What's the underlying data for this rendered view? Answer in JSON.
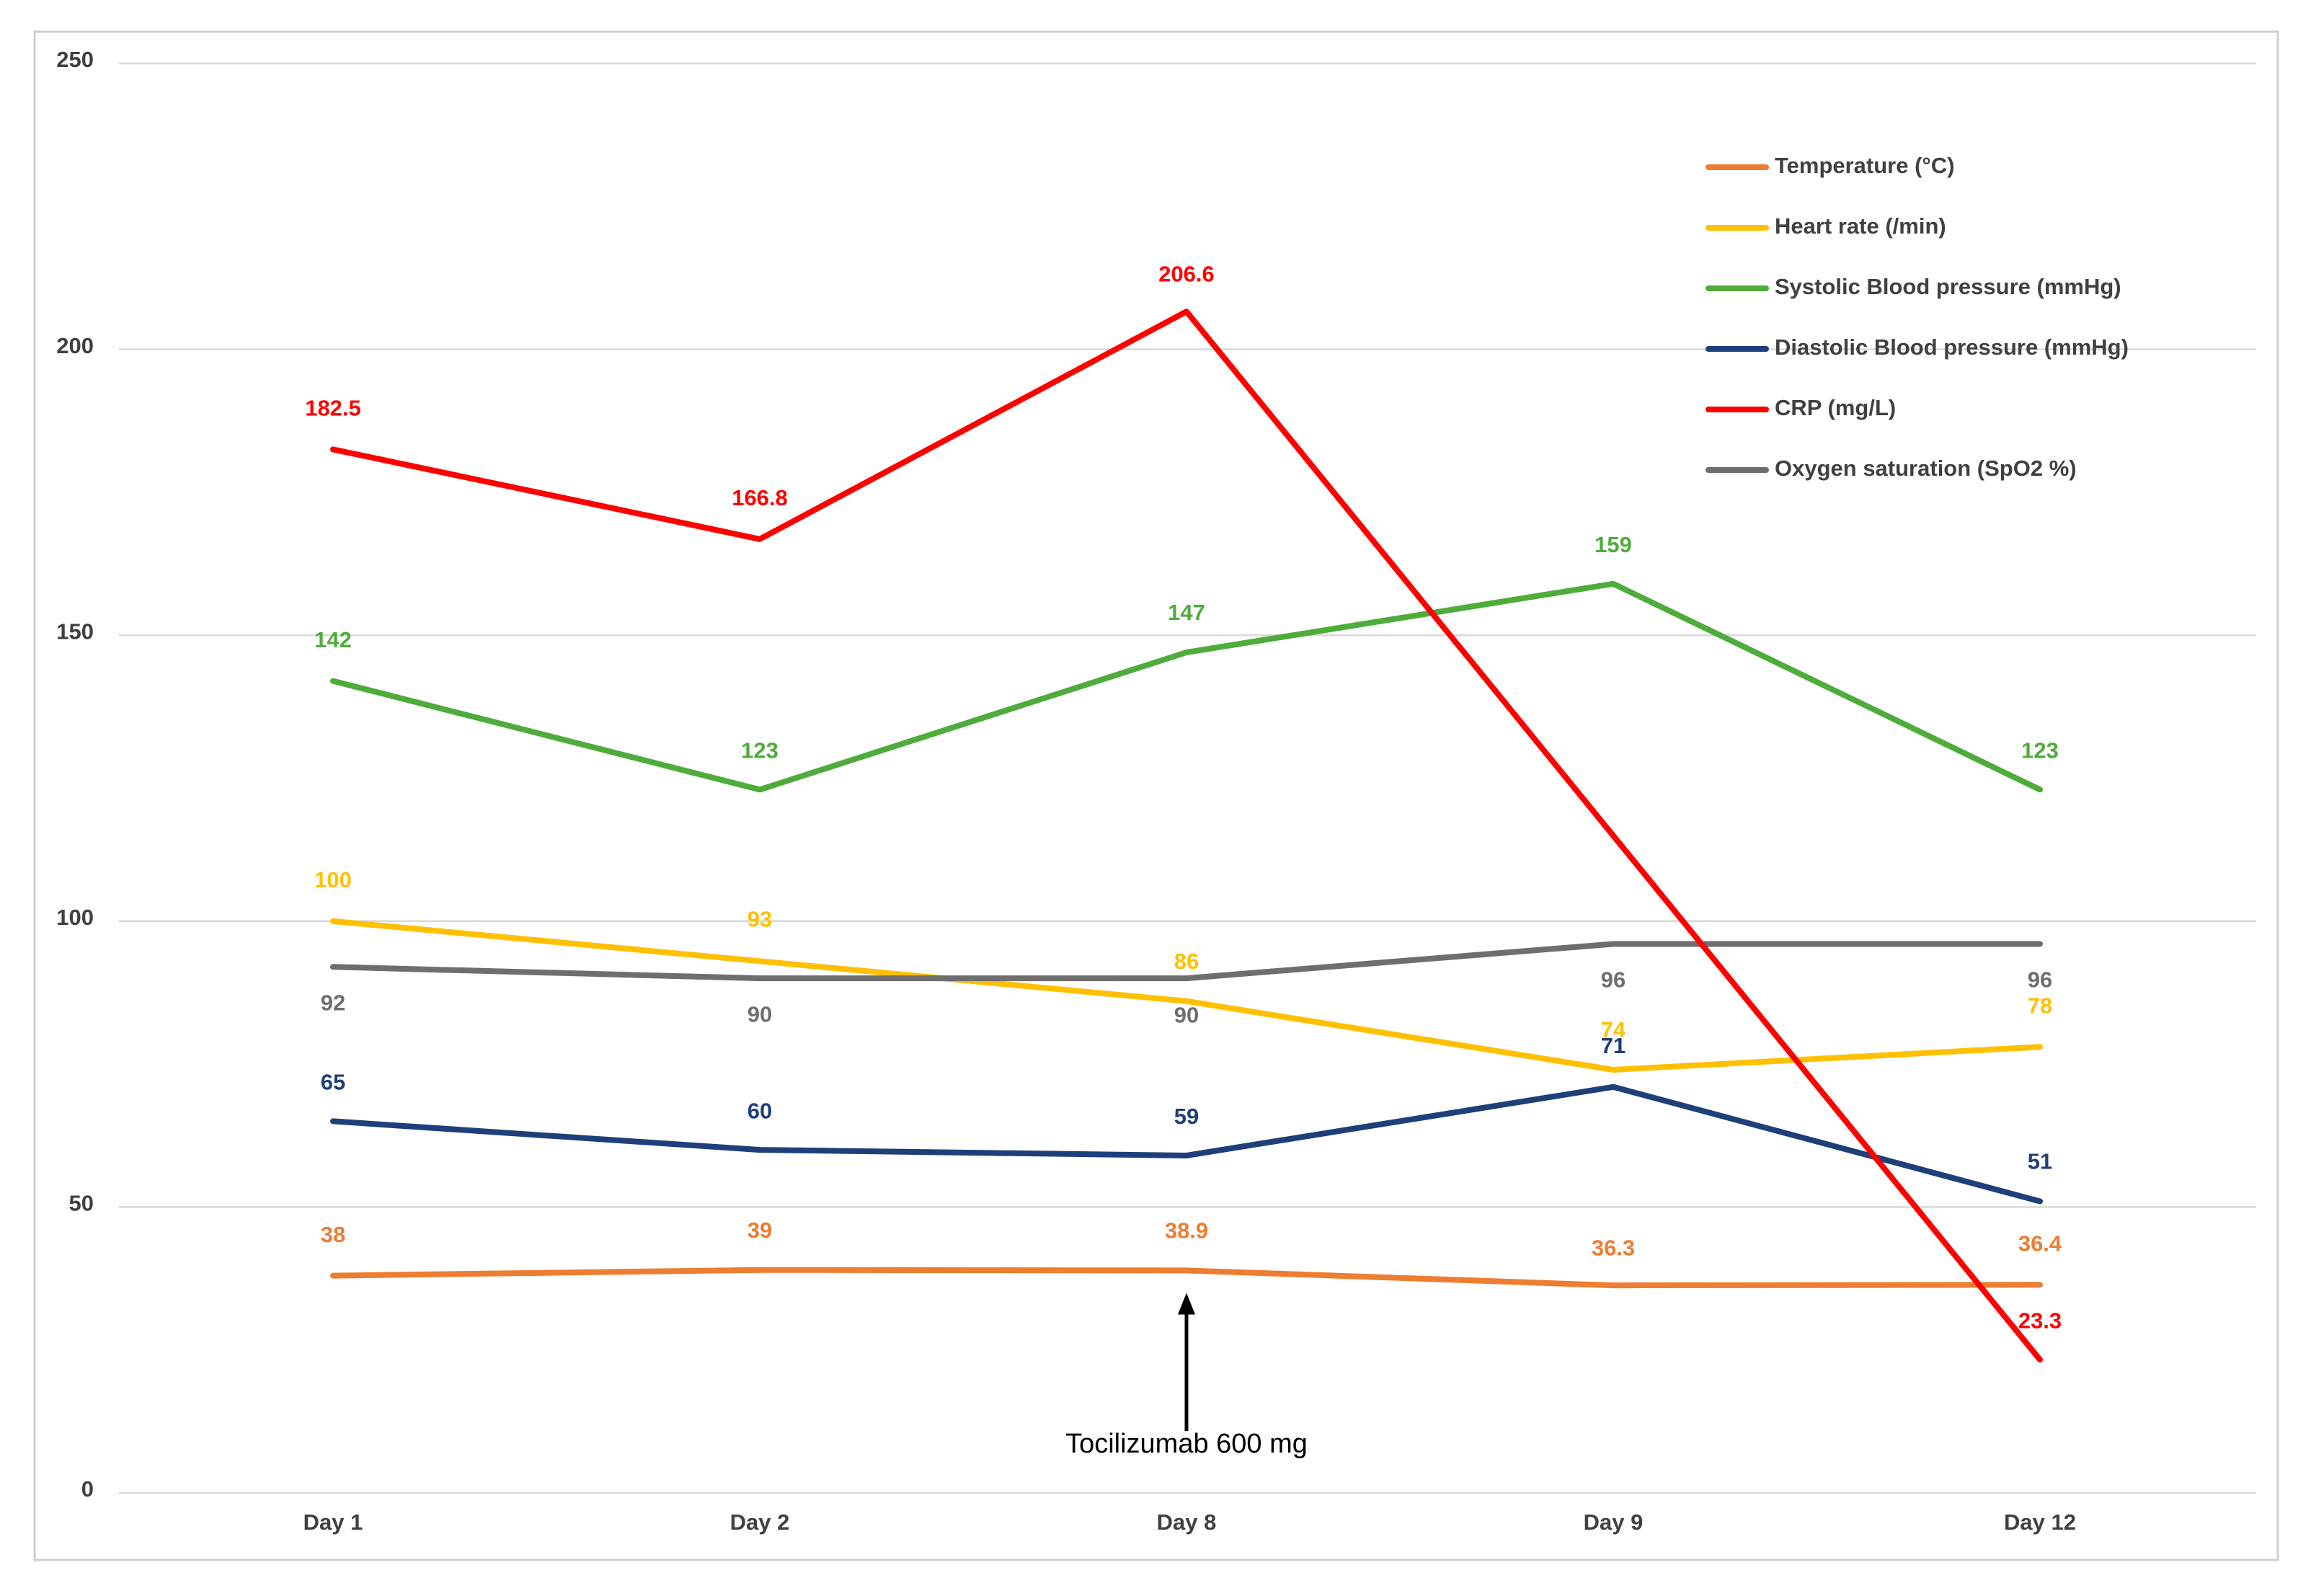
{
  "chart_data": {
    "type": "line",
    "title": "",
    "xlabel": "",
    "ylabel": "",
    "categories": [
      "Day 1",
      "Day 2",
      "Day 8",
      "Day 9",
      "Day 12"
    ],
    "ylim": [
      0,
      250
    ],
    "yticks": [
      0,
      50,
      100,
      150,
      200,
      250
    ],
    "grid": true,
    "legend_position": "top-right",
    "series": [
      {
        "name": "Temperature (°C)",
        "color": "#ed7d31",
        "values": [
          38,
          39,
          38.9,
          36.3,
          36.4
        ],
        "labels": [
          "38",
          "39",
          "38.9",
          "36.3",
          "36.4"
        ]
      },
      {
        "name": "Heart rate (/min)",
        "color": "#ffc000",
        "values": [
          100,
          93,
          86,
          74,
          78
        ],
        "labels": [
          "100",
          "93",
          "86",
          "74",
          "78"
        ]
      },
      {
        "name": "Systolic Blood pressure (mmHg)",
        "color": "#4eac3b",
        "values": [
          142,
          123,
          147,
          159,
          123
        ],
        "labels": [
          "142",
          "123",
          "147",
          "159",
          "123"
        ]
      },
      {
        "name": "Diastolic Blood pressure (mmHg)",
        "color": "#1f3f7a",
        "values": [
          65,
          60,
          59,
          71,
          51
        ],
        "labels": [
          "65",
          "60",
          "59",
          "71",
          "51"
        ]
      },
      {
        "name": "CRP (mg/L)",
        "color": "#ff0000",
        "values": [
          182.5,
          166.8,
          206.6,
          null,
          23.3
        ],
        "labels": [
          "182.5",
          "166.8",
          "206.6",
          "",
          "23.3"
        ]
      },
      {
        "name": "Oxygen saturation (SpO2 %)",
        "color": "#6e6e6e",
        "values": [
          92,
          90,
          90,
          96,
          96
        ],
        "labels": [
          "92",
          "90",
          "90",
          "96",
          "96"
        ]
      }
    ],
    "annotations": [
      {
        "text": "Tocilizumab 600 mg",
        "at_category": "Day 8",
        "arrow_to_value": 36
      }
    ]
  }
}
